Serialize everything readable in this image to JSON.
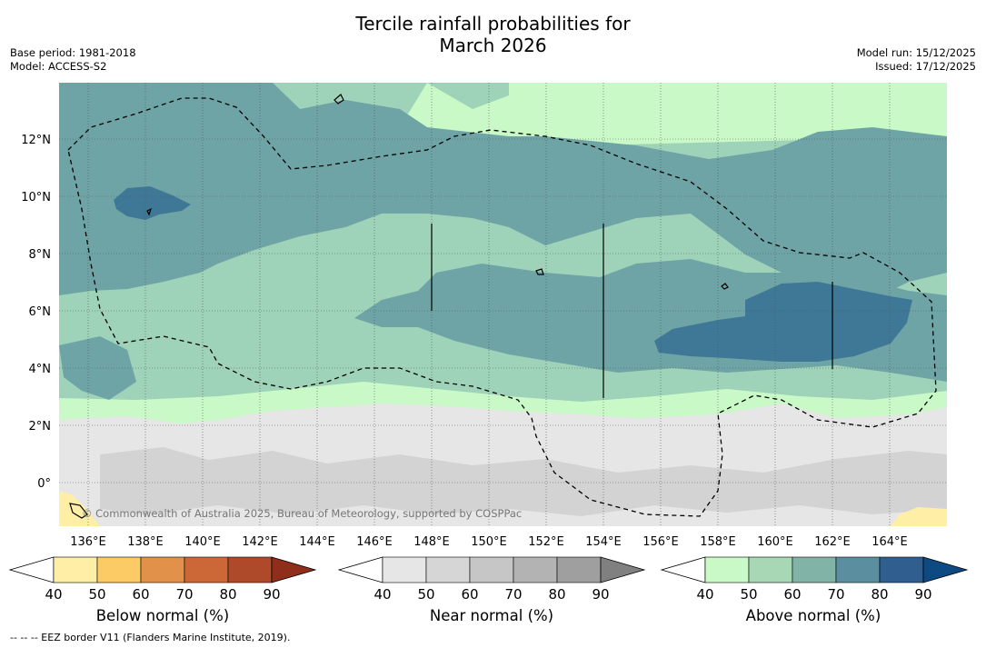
{
  "title_line1": "Tercile rainfall probabilities for",
  "title_line2": "March 2026",
  "meta_left": {
    "base_period": "Base period: 1981-2018",
    "model": "Model: ACCESS-S2"
  },
  "meta_right": {
    "model_run": "Model run: 15/12/2025",
    "issued": "Issued: 17/12/2025"
  },
  "credit": "© Commonwealth of Australia 2025, Bureau of Meteorology, supported by COSPPac",
  "lat_ticks": [
    "12°N",
    "10°N",
    "8°N",
    "6°N",
    "4°N",
    "2°N",
    "0°"
  ],
  "lon_ticks": [
    "136°E",
    "138°E",
    "140°E",
    "142°E",
    "144°E",
    "146°E",
    "148°E",
    "150°E",
    "152°E",
    "154°E",
    "156°E",
    "158°E",
    "160°E",
    "162°E",
    "164°E"
  ],
  "colorbars": [
    {
      "label": "Below normal (%)",
      "ticks": [
        "40",
        "50",
        "60",
        "70",
        "80",
        "90"
      ],
      "colors": [
        "#ffeea6",
        "#fdcb66",
        "#e2914b",
        "#cc6737",
        "#ae4929",
        "#8f2f1b"
      ]
    },
    {
      "label": "Near normal (%)",
      "ticks": [
        "40",
        "50",
        "60",
        "70",
        "80",
        "90"
      ],
      "colors": [
        "#e6e6e6",
        "#d6d6d6",
        "#c6c6c6",
        "#b3b3b3",
        "#9f9f9f",
        "#808080"
      ]
    },
    {
      "label": "Above normal (%)",
      "ticks": [
        "40",
        "50",
        "60",
        "70",
        "80",
        "90"
      ],
      "colors": [
        "#c8f9c6",
        "#a7d7b4",
        "#82b3a7",
        "#5b8fa0",
        "#2f5e8f",
        "#0e4a82"
      ]
    }
  ],
  "footer": "--  --  -- EEZ border V11 (Flanders Marine Institute, 2019)."
}
